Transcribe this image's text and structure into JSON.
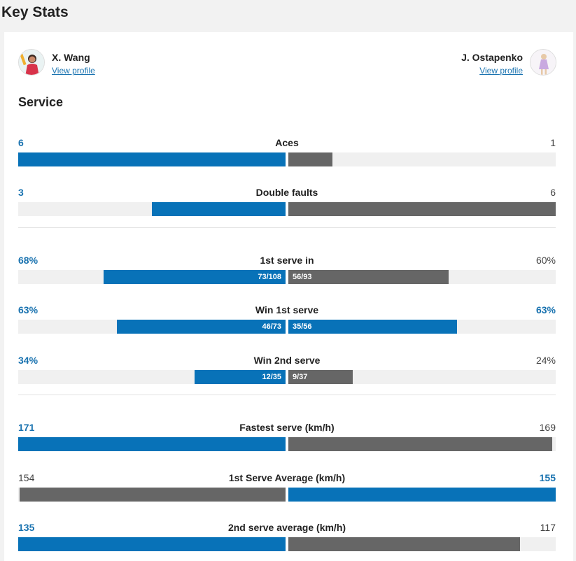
{
  "title": "Key Stats",
  "players": {
    "left": {
      "name": "X. Wang",
      "link": "View profile"
    },
    "right": {
      "name": "J. Ostapenko",
      "link": "View profile"
    }
  },
  "section": "Service",
  "colors": {
    "blue": "#0872b8",
    "gray": "#666666",
    "track": "#f0f0f0"
  },
  "stats": [
    {
      "label": "Aces",
      "left": "6",
      "right": "1",
      "left_pct": 100,
      "right_pct": 16.6,
      "left_color": "blue",
      "right_color": "gray",
      "left_win": true,
      "right_win": false
    },
    {
      "label": "Double faults",
      "left": "3",
      "right": "6",
      "left_pct": 50,
      "right_pct": 100,
      "left_color": "blue",
      "right_color": "gray",
      "left_win": true,
      "right_win": false
    },
    {
      "label": "1st serve in",
      "left": "68%",
      "right": "60%",
      "left_pct": 68,
      "right_pct": 60,
      "left_color": "blue",
      "right_color": "gray",
      "left_win": true,
      "right_win": false,
      "left_detail": "73/108",
      "right_detail": "56/93"
    },
    {
      "label": "Win 1st serve",
      "left": "63%",
      "right": "63%",
      "left_pct": 63,
      "right_pct": 63,
      "left_color": "blue",
      "right_color": "blue",
      "left_win": true,
      "right_win": true,
      "left_detail": "46/73",
      "right_detail": "35/56"
    },
    {
      "label": "Win 2nd serve",
      "left": "34%",
      "right": "24%",
      "left_pct": 34,
      "right_pct": 24,
      "left_color": "blue",
      "right_color": "gray",
      "left_win": true,
      "right_win": false,
      "left_detail": "12/35",
      "right_detail": "9/37"
    },
    {
      "label": "Fastest serve (km/h)",
      "left": "171",
      "right": "169",
      "left_pct": 100,
      "right_pct": 98.8,
      "left_color": "blue",
      "right_color": "gray",
      "left_win": true,
      "right_win": false
    },
    {
      "label": "1st Serve Average (km/h)",
      "left": "154",
      "right": "155",
      "left_pct": 99.4,
      "right_pct": 100,
      "left_color": "gray",
      "right_color": "blue",
      "left_win": false,
      "right_win": true
    },
    {
      "label": "2nd serve average (km/h)",
      "left": "135",
      "right": "117",
      "left_pct": 100,
      "right_pct": 86.7,
      "left_color": "blue",
      "right_color": "gray",
      "left_win": true,
      "right_win": false
    }
  ]
}
